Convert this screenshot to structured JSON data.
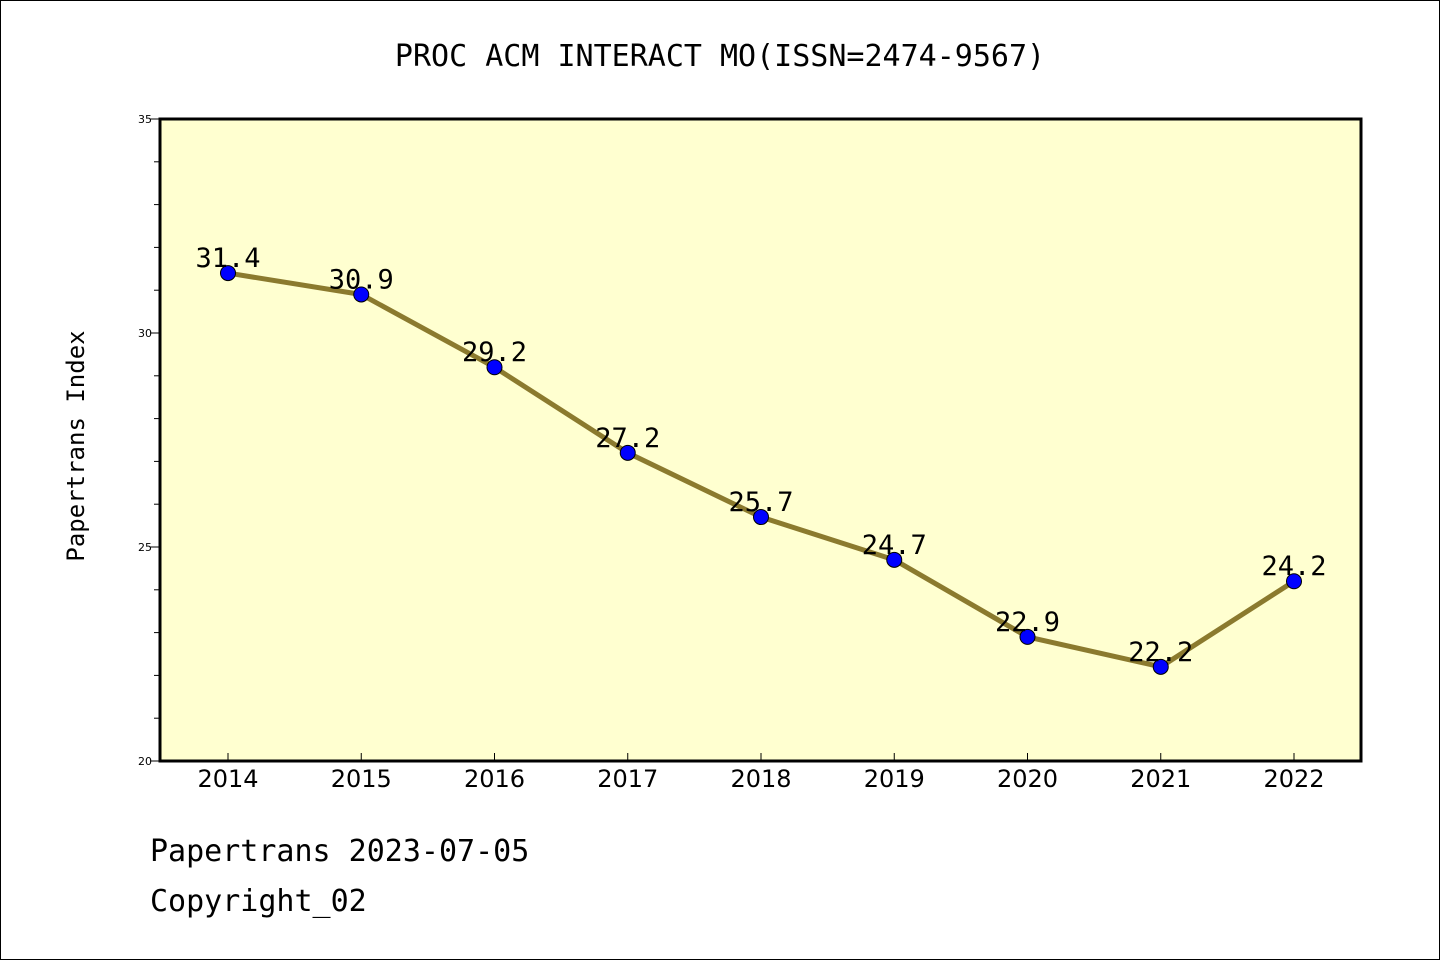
{
  "chart_data": {
    "type": "line",
    "title": "PROC ACM INTERACT MO(ISSN=2474-9567)",
    "xlabel": "",
    "ylabel": "Papertrans Index",
    "categories": [
      "2014",
      "2015",
      "2016",
      "2017",
      "2018",
      "2019",
      "2020",
      "2021",
      "2022"
    ],
    "series": [
      {
        "values": [
          31.4,
          30.9,
          29.2,
          27.2,
          25.7,
          24.7,
          22.9,
          22.2,
          24.2
        ],
        "data_labels": [
          "31.4",
          "30.9",
          "29.2",
          "27.2",
          "25.7",
          "24.7",
          "22.9",
          "22.2",
          "24.2"
        ],
        "line_color": "#8b7a2e",
        "marker_color": "#0000ff"
      }
    ],
    "ylim": [
      20,
      35
    ],
    "yticks": [
      "20",
      "25",
      "30",
      "35"
    ],
    "plot_background": "#ffffd0",
    "grid": false,
    "legend": "none"
  },
  "footer": {
    "source_line": "Papertrans 2023-07-05",
    "copyright_line": "Copyright_02"
  }
}
